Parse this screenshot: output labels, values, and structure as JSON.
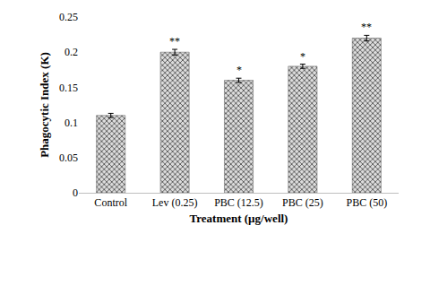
{
  "chart_data": {
    "type": "bar",
    "x_label": "Treatment (µg/well)",
    "y_label": "Phagocytic Index (K)",
    "categories": [
      "Control",
      "Lev (0.25)",
      "PBC (12.5)",
      "PBC (25)",
      "PBC (50)"
    ],
    "values": [
      0.11,
      0.2,
      0.16,
      0.18,
      0.22
    ],
    "errors": [
      0.003,
      0.004,
      0.003,
      0.003,
      0.004
    ],
    "annotations": [
      {
        "category": "Lev (0.25)",
        "text": "**"
      },
      {
        "category": "PBC (12.5)",
        "text": "*"
      },
      {
        "category": "PBC (25)",
        "text": "*"
      },
      {
        "category": "PBC (50)",
        "text": "**"
      }
    ],
    "color": "#555555",
    "ylim": [
      0,
      0.25
    ],
    "yticks": [
      0,
      0.05,
      0.1,
      0.15,
      0.2,
      0.25
    ],
    "grid": false
  }
}
